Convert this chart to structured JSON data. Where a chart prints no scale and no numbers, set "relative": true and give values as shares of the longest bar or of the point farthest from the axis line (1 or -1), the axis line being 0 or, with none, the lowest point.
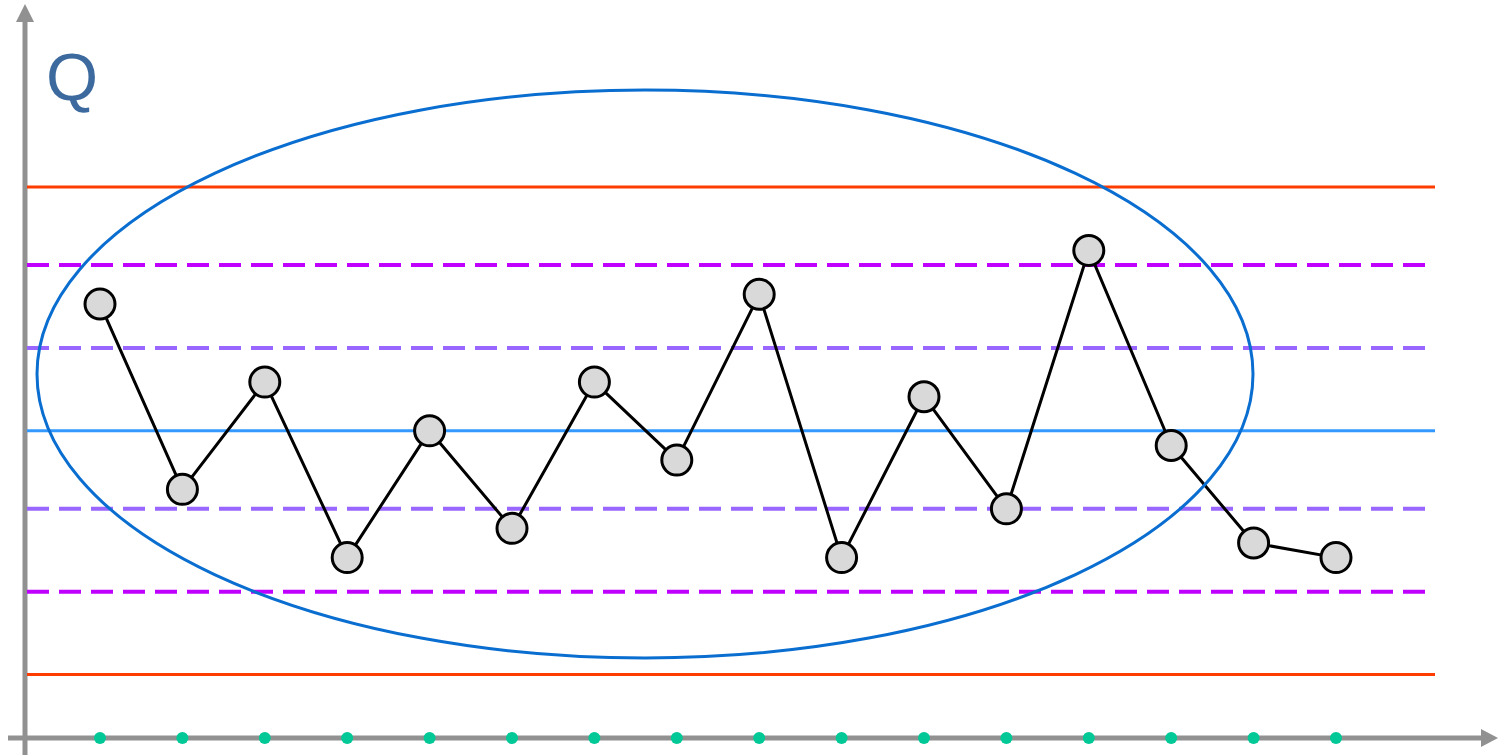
{
  "chart_data": {
    "type": "line",
    "ylabel": "Q",
    "relative": true,
    "categories": [
      null,
      null,
      null,
      null,
      null,
      null,
      null,
      null,
      null,
      null,
      null,
      null,
      null,
      null,
      null,
      null
    ],
    "series": [
      {
        "color": "#000000",
        "values": [
          0.89,
          0.51,
          0.73,
          0.37,
          0.63,
          0.43,
          0.73,
          0.57,
          0.91,
          0.37,
          0.7,
          0.47,
          1,
          0.6,
          0.4,
          0.37
        ]
      }
    ],
    "marker": "circle",
    "line_style": "solid",
    "grid": false,
    "legend": false,
    "tick_labels": false,
    "ref_lines": [
      {
        "axis": "y",
        "value": 1.13,
        "color": "#ff3c00",
        "line_style": "solid"
      },
      {
        "axis": "y",
        "value": 0.97,
        "color": "#c000ff",
        "line_style": "dashed"
      },
      {
        "axis": "y",
        "value": 0.8,
        "color": "#9966ff",
        "line_style": "dashed"
      },
      {
        "axis": "y",
        "value": 0.63,
        "color": "#3399ff",
        "line_style": "solid"
      },
      {
        "axis": "y",
        "value": 0.47,
        "color": "#9966ff",
        "line_style": "dashed"
      },
      {
        "axis": "y",
        "value": 0.3,
        "color": "#c000ff",
        "line_style": "dashed"
      },
      {
        "axis": "y",
        "value": 0.13,
        "color": "#ff3c00",
        "line_style": "solid"
      }
    ]
  }
}
